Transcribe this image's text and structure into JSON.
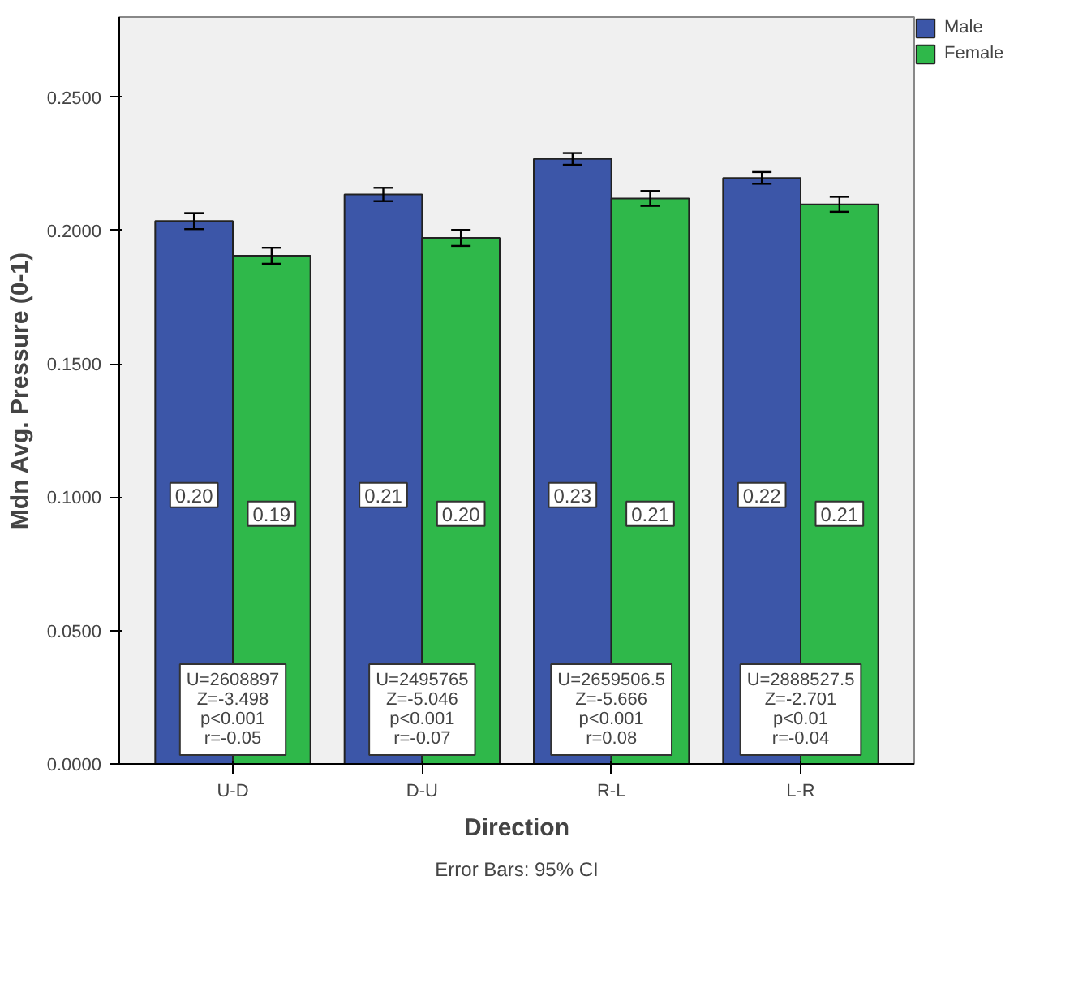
{
  "chart_data": {
    "type": "bar",
    "xlabel": "Direction",
    "ylabel": "Mdn Avg. Pressure (0-1)",
    "categories": [
      "U-D",
      "D-U",
      "R-L",
      "L-R"
    ],
    "series": [
      {
        "name": "Male",
        "color": "#3c56a8",
        "values": [
          0.2035,
          0.2135,
          0.2268,
          0.2197
        ],
        "errors": [
          0.003,
          0.0025,
          0.0022,
          0.0022
        ],
        "value_labels": [
          "0.20",
          "0.21",
          "0.23",
          "0.22"
        ]
      },
      {
        "name": "Female",
        "color": "#2fb84a",
        "values": [
          0.1905,
          0.1972,
          0.212,
          0.2098
        ],
        "errors": [
          0.003,
          0.003,
          0.0028,
          0.0028
        ],
        "value_labels": [
          "0.19",
          "0.20",
          "0.21",
          "0.21"
        ]
      }
    ],
    "ylim": [
      0,
      0.28
    ],
    "yticks": [
      {
        "value": 0,
        "label": "0.0000"
      },
      {
        "value": 0.05,
        "label": "0.0500"
      },
      {
        "value": 0.1,
        "label": "0.1000"
      },
      {
        "value": 0.15,
        "label": "0.1500"
      },
      {
        "value": 0.2,
        "label": "0.2000"
      },
      {
        "value": 0.25,
        "label": "0.2500"
      }
    ],
    "annotations": [
      "U=2608897\nZ=-3.498\np<0.001\nr=-0.05",
      "U=2495765\nZ=-5.046\np<0.001\nr=-0.07",
      "U=2659506.5\nZ=-5.666\np<0.001\nr=0.08",
      "U=2888527.5\nZ=-2.701\np<0.01\nr=-0.04",
      "Error Bars: 95% CI"
    ],
    "legend": "top right",
    "grid": false
  }
}
